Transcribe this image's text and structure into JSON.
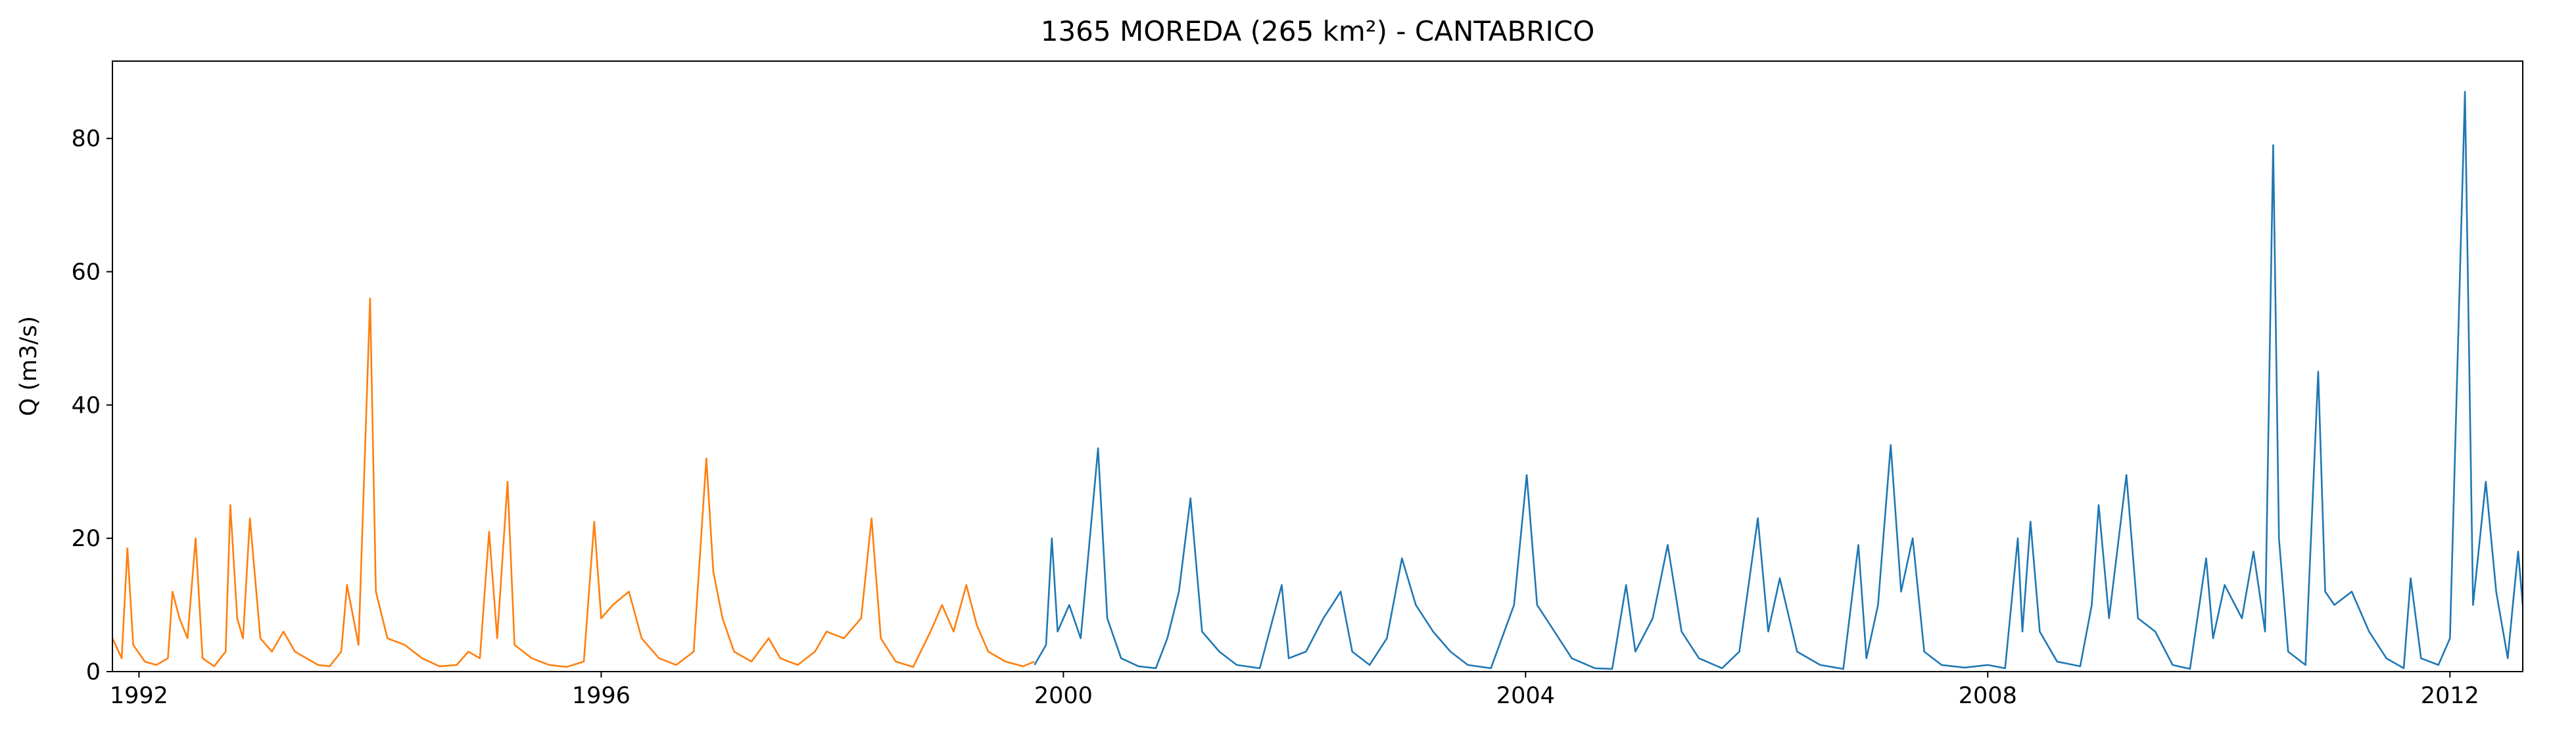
{
  "chart_data": {
    "type": "line",
    "title": "1365 MOREDA (265 km²) - CANTABRICO",
    "y_label": "Q (m3/s)",
    "xlim": [
      1991.77,
      2012.63
    ],
    "xticks": [
      1992,
      1996,
      2000,
      2004,
      2008,
      2012
    ],
    "ylim": [
      0,
      91.6
    ],
    "yticks": [
      0,
      20,
      40,
      60,
      80
    ],
    "grid": false,
    "series": [
      {
        "color": "#ff7f0e",
        "x": [
          1991.77,
          1991.85,
          1991.9,
          1991.95,
          1992.05,
          1992.15,
          1992.25,
          1992.29,
          1992.35,
          1992.42,
          1992.49,
          1992.55,
          1992.65,
          1992.75,
          1992.79,
          1992.85,
          1992.9,
          1992.96,
          1993.05,
          1993.15,
          1993.25,
          1993.35,
          1993.45,
          1993.55,
          1993.65,
          1993.75,
          1993.8,
          1993.9,
          1994.0,
          1994.05,
          1994.15,
          1994.3,
          1994.45,
          1994.6,
          1994.75,
          1994.85,
          1994.95,
          1995.03,
          1995.1,
          1995.19,
          1995.25,
          1995.4,
          1995.55,
          1995.7,
          1995.85,
          1995.94,
          1996.0,
          1996.1,
          1996.24,
          1996.35,
          1996.5,
          1996.65,
          1996.8,
          1996.91,
          1996.97,
          1997.05,
          1997.15,
          1997.3,
          1997.45,
          1997.55,
          1997.7,
          1997.85,
          1997.95,
          1998.1,
          1998.25,
          1998.34,
          1998.42,
          1998.55,
          1998.7,
          1998.85,
          1998.95,
          1999.05,
          1999.16,
          1999.25,
          1999.35,
          1999.5,
          1999.65,
          1999.75
        ],
        "values": [
          5,
          2,
          18.5,
          4,
          1.5,
          1,
          2,
          12,
          8,
          5,
          20,
          2,
          0.8,
          3,
          25,
          8,
          5,
          23,
          5,
          3,
          6,
          3,
          2,
          1,
          0.8,
          3,
          13,
          4,
          56,
          12,
          5,
          4,
          2,
          0.8,
          1,
          3,
          2,
          21,
          5,
          28.5,
          4,
          2,
          1,
          0.7,
          1.5,
          22.5,
          8,
          10,
          12,
          5,
          2,
          1,
          3,
          32,
          15,
          8,
          3,
          1.5,
          5,
          2,
          1,
          3,
          6,
          5,
          8,
          23,
          5,
          1.5,
          0.7,
          6,
          10,
          6,
          13,
          7,
          3,
          1.5,
          0.8,
          1.5
        ]
      },
      {
        "color": "#1f77b4",
        "x": [
          1999.75,
          1999.85,
          1999.9,
          1999.95,
          2000.05,
          2000.15,
          2000.3,
          2000.38,
          2000.5,
          2000.65,
          2000.8,
          2000.9,
          2001.0,
          2001.1,
          2001.2,
          2001.35,
          2001.5,
          2001.7,
          2001.89,
          2001.95,
          2002.1,
          2002.25,
          2002.4,
          2002.5,
          2002.65,
          2002.8,
          2002.93,
          2003.05,
          2003.2,
          2003.35,
          2003.5,
          2003.7,
          2003.9,
          2004.01,
          2004.1,
          2004.25,
          2004.4,
          2004.6,
          2004.75,
          2004.87,
          2004.95,
          2005.1,
          2005.23,
          2005.35,
          2005.5,
          2005.7,
          2005.85,
          2006.01,
          2006.1,
          2006.2,
          2006.35,
          2006.55,
          2006.75,
          2006.88,
          2006.95,
          2007.05,
          2007.16,
          2007.25,
          2007.35,
          2007.45,
          2007.6,
          2007.8,
          2008.0,
          2008.15,
          2008.26,
          2008.3,
          2008.37,
          2008.45,
          2008.6,
          2008.8,
          2008.9,
          2008.96,
          2009.05,
          2009.2,
          2009.3,
          2009.45,
          2009.6,
          2009.75,
          2009.89,
          2009.95,
          2010.05,
          2010.2,
          2010.3,
          2010.4,
          2010.47,
          2010.52,
          2010.6,
          2010.75,
          2010.86,
          2010.92,
          2011.0,
          2011.15,
          2011.3,
          2011.45,
          2011.6,
          2011.66,
          2011.75,
          2011.9,
          2012.0,
          2012.13,
          2012.2,
          2012.31,
          2012.4,
          2012.5,
          2012.55,
          2012.59,
          2012.63
        ],
        "values": [
          1,
          4,
          20,
          6,
          10,
          5,
          33.5,
          8,
          2,
          0.8,
          0.5,
          5,
          12,
          26,
          6,
          3,
          1,
          0.5,
          13,
          2,
          3,
          8,
          12,
          3,
          1,
          5,
          17,
          10,
          6,
          3,
          1,
          0.5,
          10,
          29.5,
          10,
          6,
          2,
          0.5,
          0.4,
          13,
          3,
          8,
          19,
          6,
          2,
          0.5,
          3,
          23,
          6,
          14,
          3,
          1,
          0.4,
          19,
          2,
          10,
          34,
          12,
          20,
          3,
          1,
          0.6,
          1,
          0.5,
          20,
          6,
          22.5,
          6,
          1.5,
          0.8,
          10,
          25,
          8,
          29.5,
          8,
          6,
          1,
          0.4,
          17,
          5,
          13,
          8,
          18,
          6,
          79,
          20,
          3,
          1,
          45,
          12,
          10,
          12,
          6,
          2,
          0.5,
          14,
          2,
          1,
          5,
          87,
          10,
          28.5,
          12,
          2,
          11,
          18,
          10
        ]
      }
    ]
  }
}
